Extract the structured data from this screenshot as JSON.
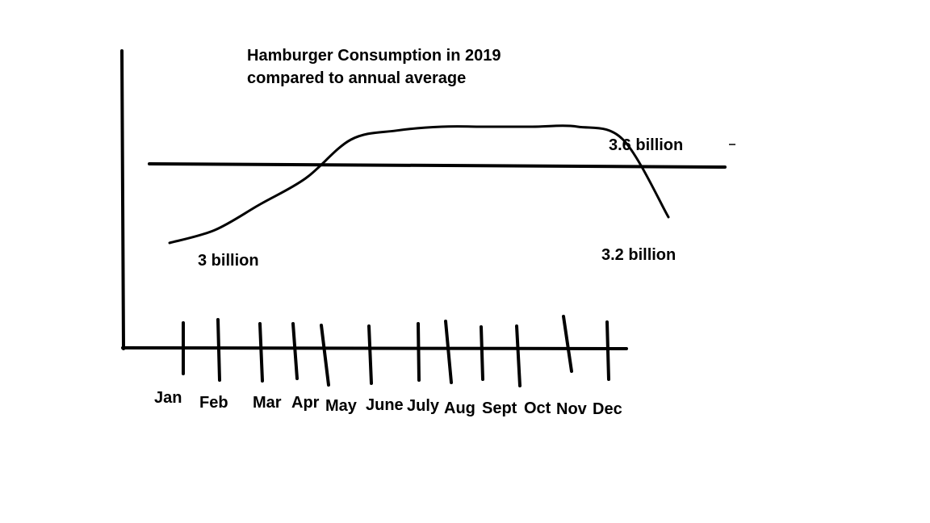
{
  "chart_data": {
    "type": "line",
    "title_lines": [
      "Hamburger Consumption in 2019",
      "compared to annual average"
    ],
    "categories": [
      "Jan",
      "Feb",
      "Mar",
      "Apr",
      "May",
      "June",
      "July",
      "Aug",
      "Sept",
      "Oct",
      "Nov",
      "Dec"
    ],
    "unit": "billion",
    "series": [
      {
        "values": [
          3.0,
          3.1,
          3.3,
          3.5,
          3.8,
          3.87,
          3.9,
          3.9,
          3.9,
          3.9,
          3.8,
          3.2
        ]
      }
    ],
    "reference_line": {
      "value": 3.6
    },
    "annotations": [
      "3 billion",
      "3.6 billion",
      "3.2 billion"
    ],
    "ylim": [
      2.5,
      4.2
    ],
    "grid": false,
    "legend": "none",
    "colors": {
      "line": "#000000",
      "background": "#ffffff"
    }
  }
}
